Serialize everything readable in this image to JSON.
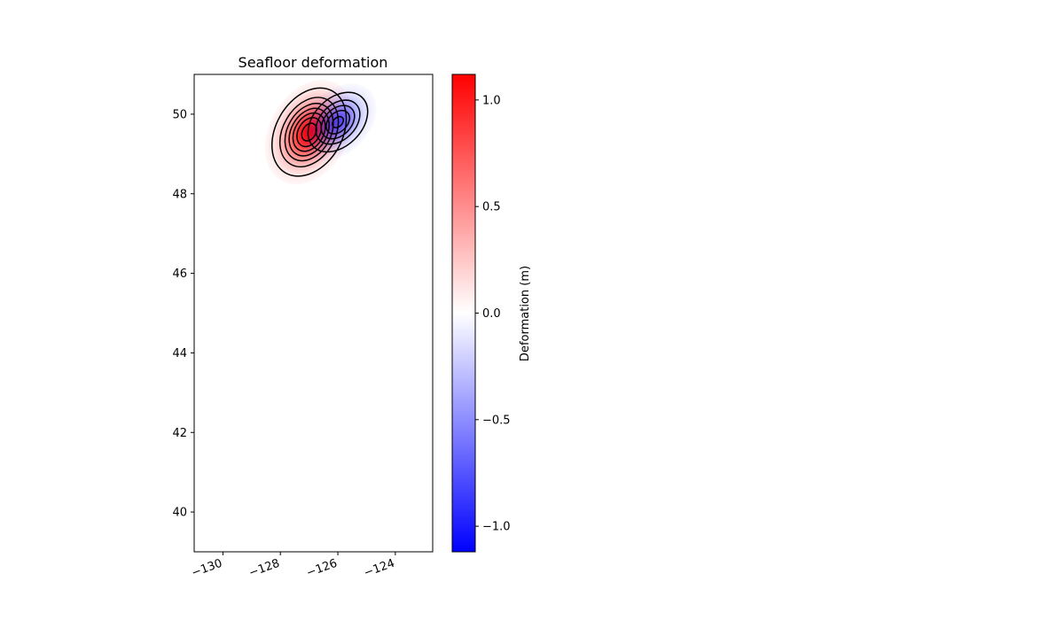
{
  "chart_data": {
    "type": "heatmap",
    "title": "Seafloor deformation",
    "xlabel": "",
    "ylabel": "",
    "xlim": [
      -131,
      -122.7
    ],
    "ylim": [
      39,
      51
    ],
    "x_ticks": [
      -130,
      -128,
      -126,
      -124
    ],
    "x_tick_labels": [
      "−130",
      "−128",
      "−126",
      "−124"
    ],
    "y_ticks": [
      40,
      42,
      44,
      46,
      48,
      50
    ],
    "y_tick_labels": [
      "40",
      "42",
      "44",
      "46",
      "48",
      "50"
    ],
    "grid": false,
    "colormap": "bwr",
    "colormap_colors": [
      "#0000ff",
      "#ffffff",
      "#ff0000"
    ],
    "contour_color": "#000000",
    "colorbar": {
      "label": "Deformation (m)",
      "range": [
        -1.12,
        1.12
      ],
      "ticks": [
        -1.0,
        -0.5,
        0.0,
        0.5,
        1.0
      ],
      "tick_labels": [
        "−1.0",
        "−0.5",
        "0.0",
        "0.5",
        "1.0"
      ],
      "placement": "right"
    },
    "deformation_lobes": [
      {
        "name": "uplift",
        "center": [
          -127.0,
          49.55
        ],
        "peak": 1.1,
        "sigma_major": 0.75,
        "sigma_minor": 0.38,
        "angle_deg": -60,
        "contour_levels": [
          0.1,
          0.25,
          0.4,
          0.55,
          0.7,
          0.85,
          1.0
        ]
      },
      {
        "name": "subsidence",
        "center": [
          -126.0,
          49.8
        ],
        "peak": -0.75,
        "sigma_major": 0.6,
        "sigma_minor": 0.3,
        "angle_deg": -45,
        "contour_levels": [
          -0.1,
          -0.25,
          -0.4,
          -0.55,
          -0.7
        ]
      }
    ]
  }
}
